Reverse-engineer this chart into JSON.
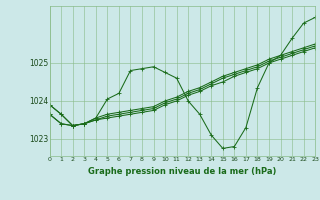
{
  "background_color": "#cce8e8",
  "plot_bg_color": "#cce8e8",
  "grid_color": "#88bb88",
  "line_color": "#1a6b1a",
  "title": "Graphe pression niveau de la mer (hPa)",
  "xlim": [
    0,
    23
  ],
  "ylim": [
    1022.55,
    1026.5
  ],
  "yticks": [
    1023,
    1024,
    1025
  ],
  "xticks": [
    0,
    1,
    2,
    3,
    4,
    5,
    6,
    7,
    8,
    9,
    10,
    11,
    12,
    13,
    14,
    15,
    16,
    17,
    18,
    19,
    20,
    21,
    22,
    23
  ],
  "series": [
    [
      1023.9,
      1023.65,
      1023.35,
      1023.4,
      1023.55,
      1024.05,
      1024.2,
      1024.8,
      1024.85,
      1024.9,
      1024.75,
      1024.6,
      1024.0,
      1023.65,
      1023.1,
      1022.75,
      1022.8,
      1023.3,
      1024.35,
      1025.0,
      1025.2,
      1025.65,
      1026.05,
      1026.2
    ],
    [
      1023.65,
      1023.4,
      1023.35,
      1023.4,
      1023.5,
      1023.55,
      1023.6,
      1023.65,
      1023.7,
      1023.75,
      1023.9,
      1024.0,
      1024.15,
      1024.25,
      1024.4,
      1024.5,
      1024.65,
      1024.75,
      1024.85,
      1025.0,
      1025.1,
      1025.2,
      1025.3,
      1025.4
    ],
    [
      1023.65,
      1023.4,
      1023.35,
      1023.4,
      1023.5,
      1023.6,
      1023.65,
      1023.7,
      1023.75,
      1023.8,
      1023.95,
      1024.05,
      1024.2,
      1024.3,
      1024.45,
      1024.6,
      1024.7,
      1024.8,
      1024.9,
      1025.05,
      1025.15,
      1025.25,
      1025.35,
      1025.45
    ],
    [
      1023.9,
      1023.65,
      1023.35,
      1023.4,
      1023.55,
      1023.65,
      1023.7,
      1023.75,
      1023.8,
      1023.85,
      1024.0,
      1024.1,
      1024.25,
      1024.35,
      1024.5,
      1024.65,
      1024.75,
      1024.85,
      1024.95,
      1025.1,
      1025.2,
      1025.3,
      1025.4,
      1025.5
    ]
  ]
}
